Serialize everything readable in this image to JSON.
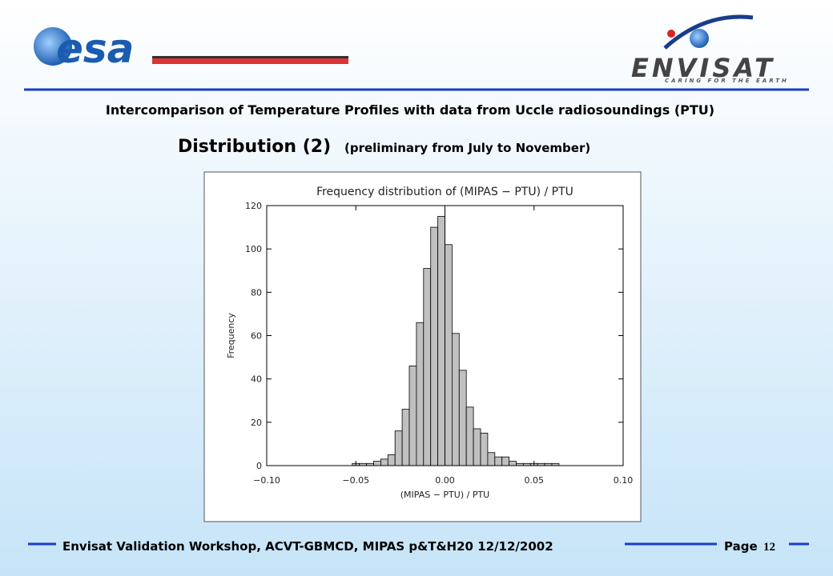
{
  "header": {
    "esa_logo": "esa",
    "envisat_logo": "ENVISAT",
    "envisat_tagline": "CARING FOR THE EARTH",
    "title": "Intercomparison of Temperature Profiles with data from Uccle radiosoundings (PTU)",
    "subtitle": "Distribution (2)",
    "subtitle_note": "(preliminary from July to November)"
  },
  "chart_data": {
    "type": "histogram",
    "title": "Frequency distribution of (MIPAS − PTU) / PTU",
    "x_label": "(MIPAS − PTU) / PTU",
    "y_label": "Frequency",
    "bins": [
      -0.052,
      -0.048,
      -0.044,
      -0.04,
      -0.036,
      -0.032,
      -0.028,
      -0.024,
      -0.02,
      -0.016,
      -0.012,
      -0.008,
      -0.004,
      0,
      0.004,
      0.008,
      0.012,
      0.016,
      0.02,
      0.024,
      0.028,
      0.032,
      0.036,
      0.04,
      0.044,
      0.048,
      0.052,
      0.056,
      0.06,
      0.064
    ],
    "values": [
      1,
      1,
      1,
      2,
      3,
      5,
      16,
      26,
      46,
      66,
      91,
      110,
      115,
      102,
      61,
      44,
      27,
      17,
      15,
      6,
      4,
      4,
      2,
      1,
      1,
      1,
      1,
      1,
      1
    ],
    "color": "#c0c0c0",
    "xlim": [
      -0.1,
      0.1
    ],
    "ylim": [
      0,
      120
    ],
    "xticks": [
      {
        "value": -0.1,
        "label": "−0.10"
      },
      {
        "value": -0.05,
        "label": "−0.05"
      },
      {
        "value": 0,
        "label": "0.00"
      },
      {
        "value": 0.05,
        "label": "0.05"
      },
      {
        "value": 0.1,
        "label": "0.10"
      }
    ],
    "yticks": [
      0,
      20,
      40,
      60,
      80,
      100,
      120
    ]
  },
  "footer": {
    "text": "Envisat Validation Workshop, ACVT-GBMCD,  MIPAS p&T&H20 12/12/2002",
    "page_label": "Page",
    "page_number": "12"
  }
}
